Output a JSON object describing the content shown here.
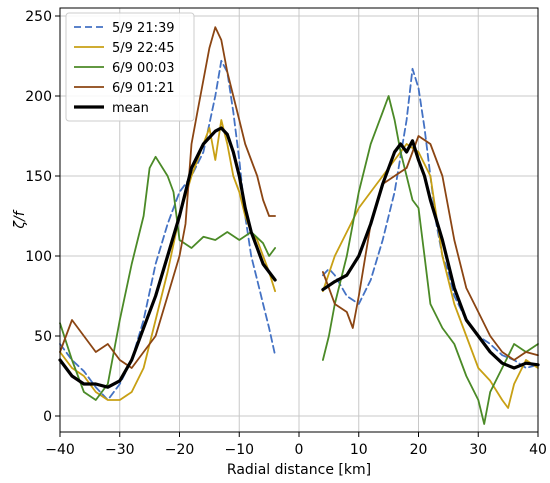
{
  "chart_data": {
    "type": "line",
    "title": "",
    "xlabel": "Radial distance [km]",
    "ylabel": "ζ/f",
    "xlim": [
      -40,
      40
    ],
    "ylim": [
      -10,
      255
    ],
    "xticks": [
      -40,
      -30,
      -20,
      -10,
      0,
      10,
      20,
      30,
      40
    ],
    "yticks": [
      0,
      50,
      100,
      150,
      200,
      250
    ],
    "grid": true,
    "legend_position": "top-left",
    "series": [
      {
        "name": "5/9 21:39",
        "color": "#4472c4",
        "dash": true,
        "width": 1.8,
        "segments": [
          [
            [
              -40,
              45
            ],
            [
              -38,
              35
            ],
            [
              -36,
              28
            ],
            [
              -34,
              18
            ],
            [
              -32,
              10
            ],
            [
              -30,
              20
            ],
            [
              -28,
              35
            ],
            [
              -26,
              60
            ],
            [
              -24,
              95
            ],
            [
              -22,
              120
            ],
            [
              -20,
              140
            ],
            [
              -18,
              150
            ],
            [
              -16,
              165
            ],
            [
              -14,
              200
            ],
            [
              -13,
              222
            ],
            [
              -12,
              215
            ],
            [
              -11,
              190
            ],
            [
              -10,
              160
            ],
            [
              -9,
              125
            ],
            [
              -8,
              100
            ],
            [
              -7,
              85
            ],
            [
              -6,
              70
            ],
            [
              -5,
              55
            ],
            [
              -4,
              38
            ]
          ],
          [
            [
              4,
              88
            ],
            [
              5,
              92
            ],
            [
              6,
              88
            ],
            [
              8,
              75
            ],
            [
              10,
              70
            ],
            [
              12,
              85
            ],
            [
              14,
              110
            ],
            [
              16,
              140
            ],
            [
              18,
              185
            ],
            [
              19,
              217
            ],
            [
              20,
              205
            ],
            [
              21,
              180
            ],
            [
              22,
              150
            ],
            [
              23,
              120
            ],
            [
              24,
              100
            ],
            [
              25,
              90
            ],
            [
              26,
              75
            ],
            [
              28,
              60
            ],
            [
              30,
              50
            ],
            [
              32,
              45
            ],
            [
              34,
              38
            ],
            [
              36,
              35
            ],
            [
              38,
              30
            ],
            [
              40,
              32
            ]
          ]
        ]
      },
      {
        "name": "5/9 22:45",
        "color": "#c8a014",
        "dash": false,
        "width": 1.8,
        "segments": [
          [
            [
              -40,
              40
            ],
            [
              -38,
              30
            ],
            [
              -36,
              25
            ],
            [
              -34,
              15
            ],
            [
              -32,
              10
            ],
            [
              -30,
              10
            ],
            [
              -28,
              15
            ],
            [
              -26,
              30
            ],
            [
              -24,
              60
            ],
            [
              -22,
              90
            ],
            [
              -20,
              125
            ],
            [
              -18,
              150
            ],
            [
              -16,
              170
            ],
            [
              -15,
              180
            ],
            [
              -14,
              160
            ],
            [
              -13,
              185
            ],
            [
              -12,
              170
            ],
            [
              -11,
              150
            ],
            [
              -10,
              140
            ],
            [
              -9,
              125
            ],
            [
              -8,
              115
            ],
            [
              -7,
              110
            ],
            [
              -6,
              100
            ],
            [
              -5,
              90
            ],
            [
              -4,
              78
            ]
          ],
          [
            [
              4,
              78
            ],
            [
              6,
              100
            ],
            [
              8,
              115
            ],
            [
              10,
              130
            ],
            [
              12,
              140
            ],
            [
              14,
              150
            ],
            [
              16,
              160
            ],
            [
              18,
              170
            ],
            [
              20,
              165
            ],
            [
              22,
              150
            ],
            [
              24,
              100
            ],
            [
              26,
              70
            ],
            [
              28,
              50
            ],
            [
              30,
              30
            ],
            [
              32,
              22
            ],
            [
              34,
              10
            ],
            [
              35,
              5
            ],
            [
              36,
              20
            ],
            [
              38,
              35
            ],
            [
              40,
              30
            ]
          ]
        ]
      },
      {
        "name": "6/9 00:03",
        "color": "#4b8a27",
        "dash": false,
        "width": 1.8,
        "segments": [
          [
            [
              -40,
              58
            ],
            [
              -38,
              35
            ],
            [
              -36,
              15
            ],
            [
              -34,
              10
            ],
            [
              -32,
              20
            ],
            [
              -30,
              60
            ],
            [
              -28,
              95
            ],
            [
              -26,
              125
            ],
            [
              -25,
              155
            ],
            [
              -24,
              162
            ],
            [
              -22,
              150
            ],
            [
              -21,
              140
            ],
            [
              -20,
              110
            ],
            [
              -18,
              105
            ],
            [
              -16,
              112
            ],
            [
              -14,
              110
            ],
            [
              -12,
              115
            ],
            [
              -10,
              110
            ],
            [
              -8,
              115
            ],
            [
              -6,
              108
            ],
            [
              -5,
              100
            ],
            [
              -4,
              105
            ]
          ],
          [
            [
              4,
              35
            ],
            [
              5,
              50
            ],
            [
              6,
              70
            ],
            [
              8,
              100
            ],
            [
              10,
              140
            ],
            [
              12,
              170
            ],
            [
              14,
              190
            ],
            [
              15,
              200
            ],
            [
              16,
              185
            ],
            [
              17,
              165
            ],
            [
              18,
              150
            ],
            [
              19,
              135
            ],
            [
              20,
              130
            ],
            [
              21,
              100
            ],
            [
              22,
              70
            ],
            [
              24,
              55
            ],
            [
              26,
              45
            ],
            [
              28,
              25
            ],
            [
              30,
              10
            ],
            [
              31,
              -5
            ],
            [
              32,
              15
            ],
            [
              34,
              30
            ],
            [
              36,
              45
            ],
            [
              38,
              40
            ],
            [
              40,
              45
            ]
          ]
        ]
      },
      {
        "name": "6/9 01:21",
        "color": "#8b4513",
        "dash": false,
        "width": 1.8,
        "segments": [
          [
            [
              -40,
              40
            ],
            [
              -38,
              60
            ],
            [
              -36,
              50
            ],
            [
              -34,
              40
            ],
            [
              -32,
              45
            ],
            [
              -30,
              35
            ],
            [
              -28,
              30
            ],
            [
              -26,
              40
            ],
            [
              -24,
              50
            ],
            [
              -22,
              75
            ],
            [
              -20,
              100
            ],
            [
              -19,
              120
            ],
            [
              -18,
              170
            ],
            [
              -17,
              190
            ],
            [
              -16,
              210
            ],
            [
              -15,
              230
            ],
            [
              -14,
              243
            ],
            [
              -13,
              235
            ],
            [
              -12,
              215
            ],
            [
              -11,
              200
            ],
            [
              -10,
              185
            ],
            [
              -9,
              170
            ],
            [
              -8,
              160
            ],
            [
              -7,
              150
            ],
            [
              -6,
              135
            ],
            [
              -5,
              125
            ],
            [
              -4,
              125
            ]
          ],
          [
            [
              4,
              90
            ],
            [
              5,
              80
            ],
            [
              6,
              70
            ],
            [
              8,
              65
            ],
            [
              9,
              55
            ],
            [
              10,
              75
            ],
            [
              12,
              120
            ],
            [
              14,
              145
            ],
            [
              16,
              150
            ],
            [
              18,
              155
            ],
            [
              20,
              175
            ],
            [
              22,
              170
            ],
            [
              24,
              150
            ],
            [
              26,
              110
            ],
            [
              28,
              80
            ],
            [
              30,
              65
            ],
            [
              32,
              50
            ],
            [
              34,
              40
            ],
            [
              36,
              35
            ],
            [
              38,
              40
            ],
            [
              40,
              38
            ]
          ]
        ]
      },
      {
        "name": "mean",
        "color": "#000000",
        "dash": false,
        "width": 3.2,
        "segments": [
          [
            [
              -40,
              35
            ],
            [
              -38,
              25
            ],
            [
              -36,
              20
            ],
            [
              -34,
              20
            ],
            [
              -32,
              18
            ],
            [
              -30,
              22
            ],
            [
              -28,
              35
            ],
            [
              -26,
              55
            ],
            [
              -24,
              75
            ],
            [
              -22,
              100
            ],
            [
              -20,
              125
            ],
            [
              -19,
              140
            ],
            [
              -18,
              155
            ],
            [
              -16,
              170
            ],
            [
              -14,
              178
            ],
            [
              -13,
              180
            ],
            [
              -12,
              176
            ],
            [
              -11,
              165
            ],
            [
              -10,
              150
            ],
            [
              -9,
              130
            ],
            [
              -8,
              115
            ],
            [
              -7,
              105
            ],
            [
              -6,
              95
            ],
            [
              -5,
              90
            ],
            [
              -4,
              85
            ]
          ],
          [
            [
              4,
              79
            ],
            [
              6,
              84
            ],
            [
              8,
              88
            ],
            [
              10,
              100
            ],
            [
              12,
              120
            ],
            [
              14,
              145
            ],
            [
              16,
              165
            ],
            [
              17,
              170
            ],
            [
              18,
              165
            ],
            [
              19,
              172
            ],
            [
              20,
              160
            ],
            [
              21,
              150
            ],
            [
              22,
              135
            ],
            [
              24,
              110
            ],
            [
              26,
              80
            ],
            [
              28,
              60
            ],
            [
              30,
              50
            ],
            [
              32,
              40
            ],
            [
              34,
              33
            ],
            [
              36,
              30
            ],
            [
              38,
              33
            ],
            [
              40,
              32
            ]
          ]
        ]
      }
    ]
  }
}
